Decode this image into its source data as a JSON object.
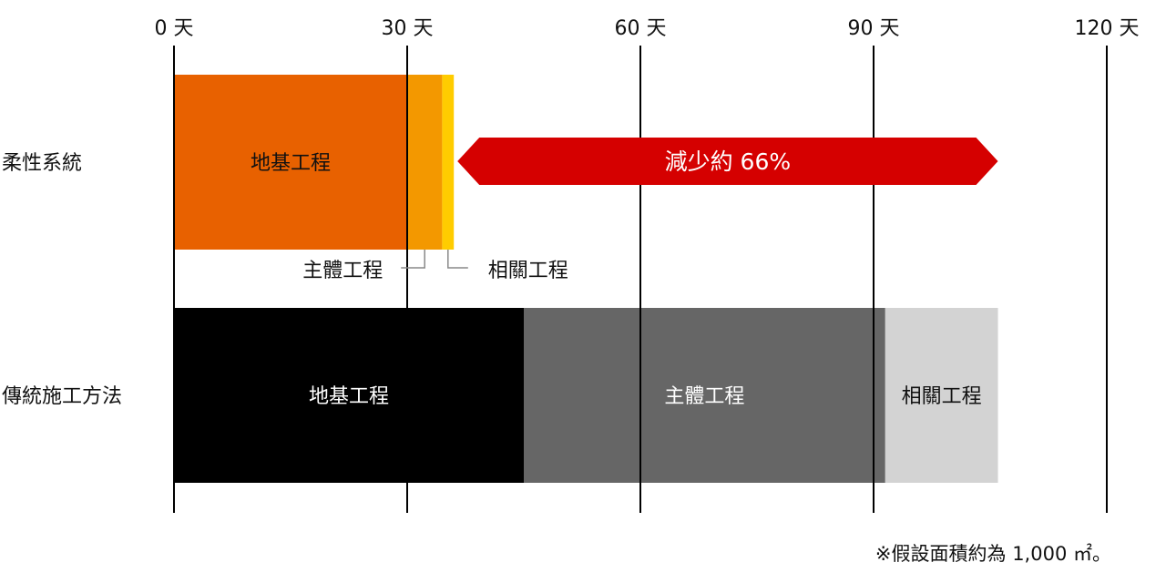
{
  "chart_data": {
    "type": "bar",
    "orientation": "horizontal",
    "stacked": true,
    "x_unit": "天",
    "xlim": [
      0,
      120
    ],
    "x_ticks": [
      0,
      30,
      60,
      90,
      120
    ],
    "x_tick_labels": [
      "0 天",
      "30 天",
      "60 天",
      "90 天",
      "120 天"
    ],
    "grid": true,
    "categories": [
      "柔性系統",
      "傳統施工方法"
    ],
    "series": [
      {
        "name": "地基工程",
        "values": [
          30,
          45
        ],
        "colors": [
          "#E86100",
          "#000000"
        ],
        "label_colors": [
          "#111111",
          "#ffffff"
        ]
      },
      {
        "name": "主體工程",
        "values": [
          4.5,
          46.5
        ],
        "colors": [
          "#F39800",
          "#666666"
        ],
        "label_colors": [
          "#111111",
          "#ffffff"
        ]
      },
      {
        "name": "相關工程",
        "values": [
          1.5,
          14.5
        ],
        "colors": [
          "#FFCC00",
          "#D3D3D3"
        ],
        "label_colors": [
          "#111111",
          "#111111"
        ]
      }
    ],
    "annotations": {
      "reduction_label": "減少約 66%",
      "reduction_color": "#D50000",
      "reduction_from": 36,
      "reduction_to": 106,
      "flexible_main_label": "主體工程",
      "flexible_related_label": "相關工程"
    },
    "footnote": "※假設面積約為 1,000 ㎡。"
  }
}
